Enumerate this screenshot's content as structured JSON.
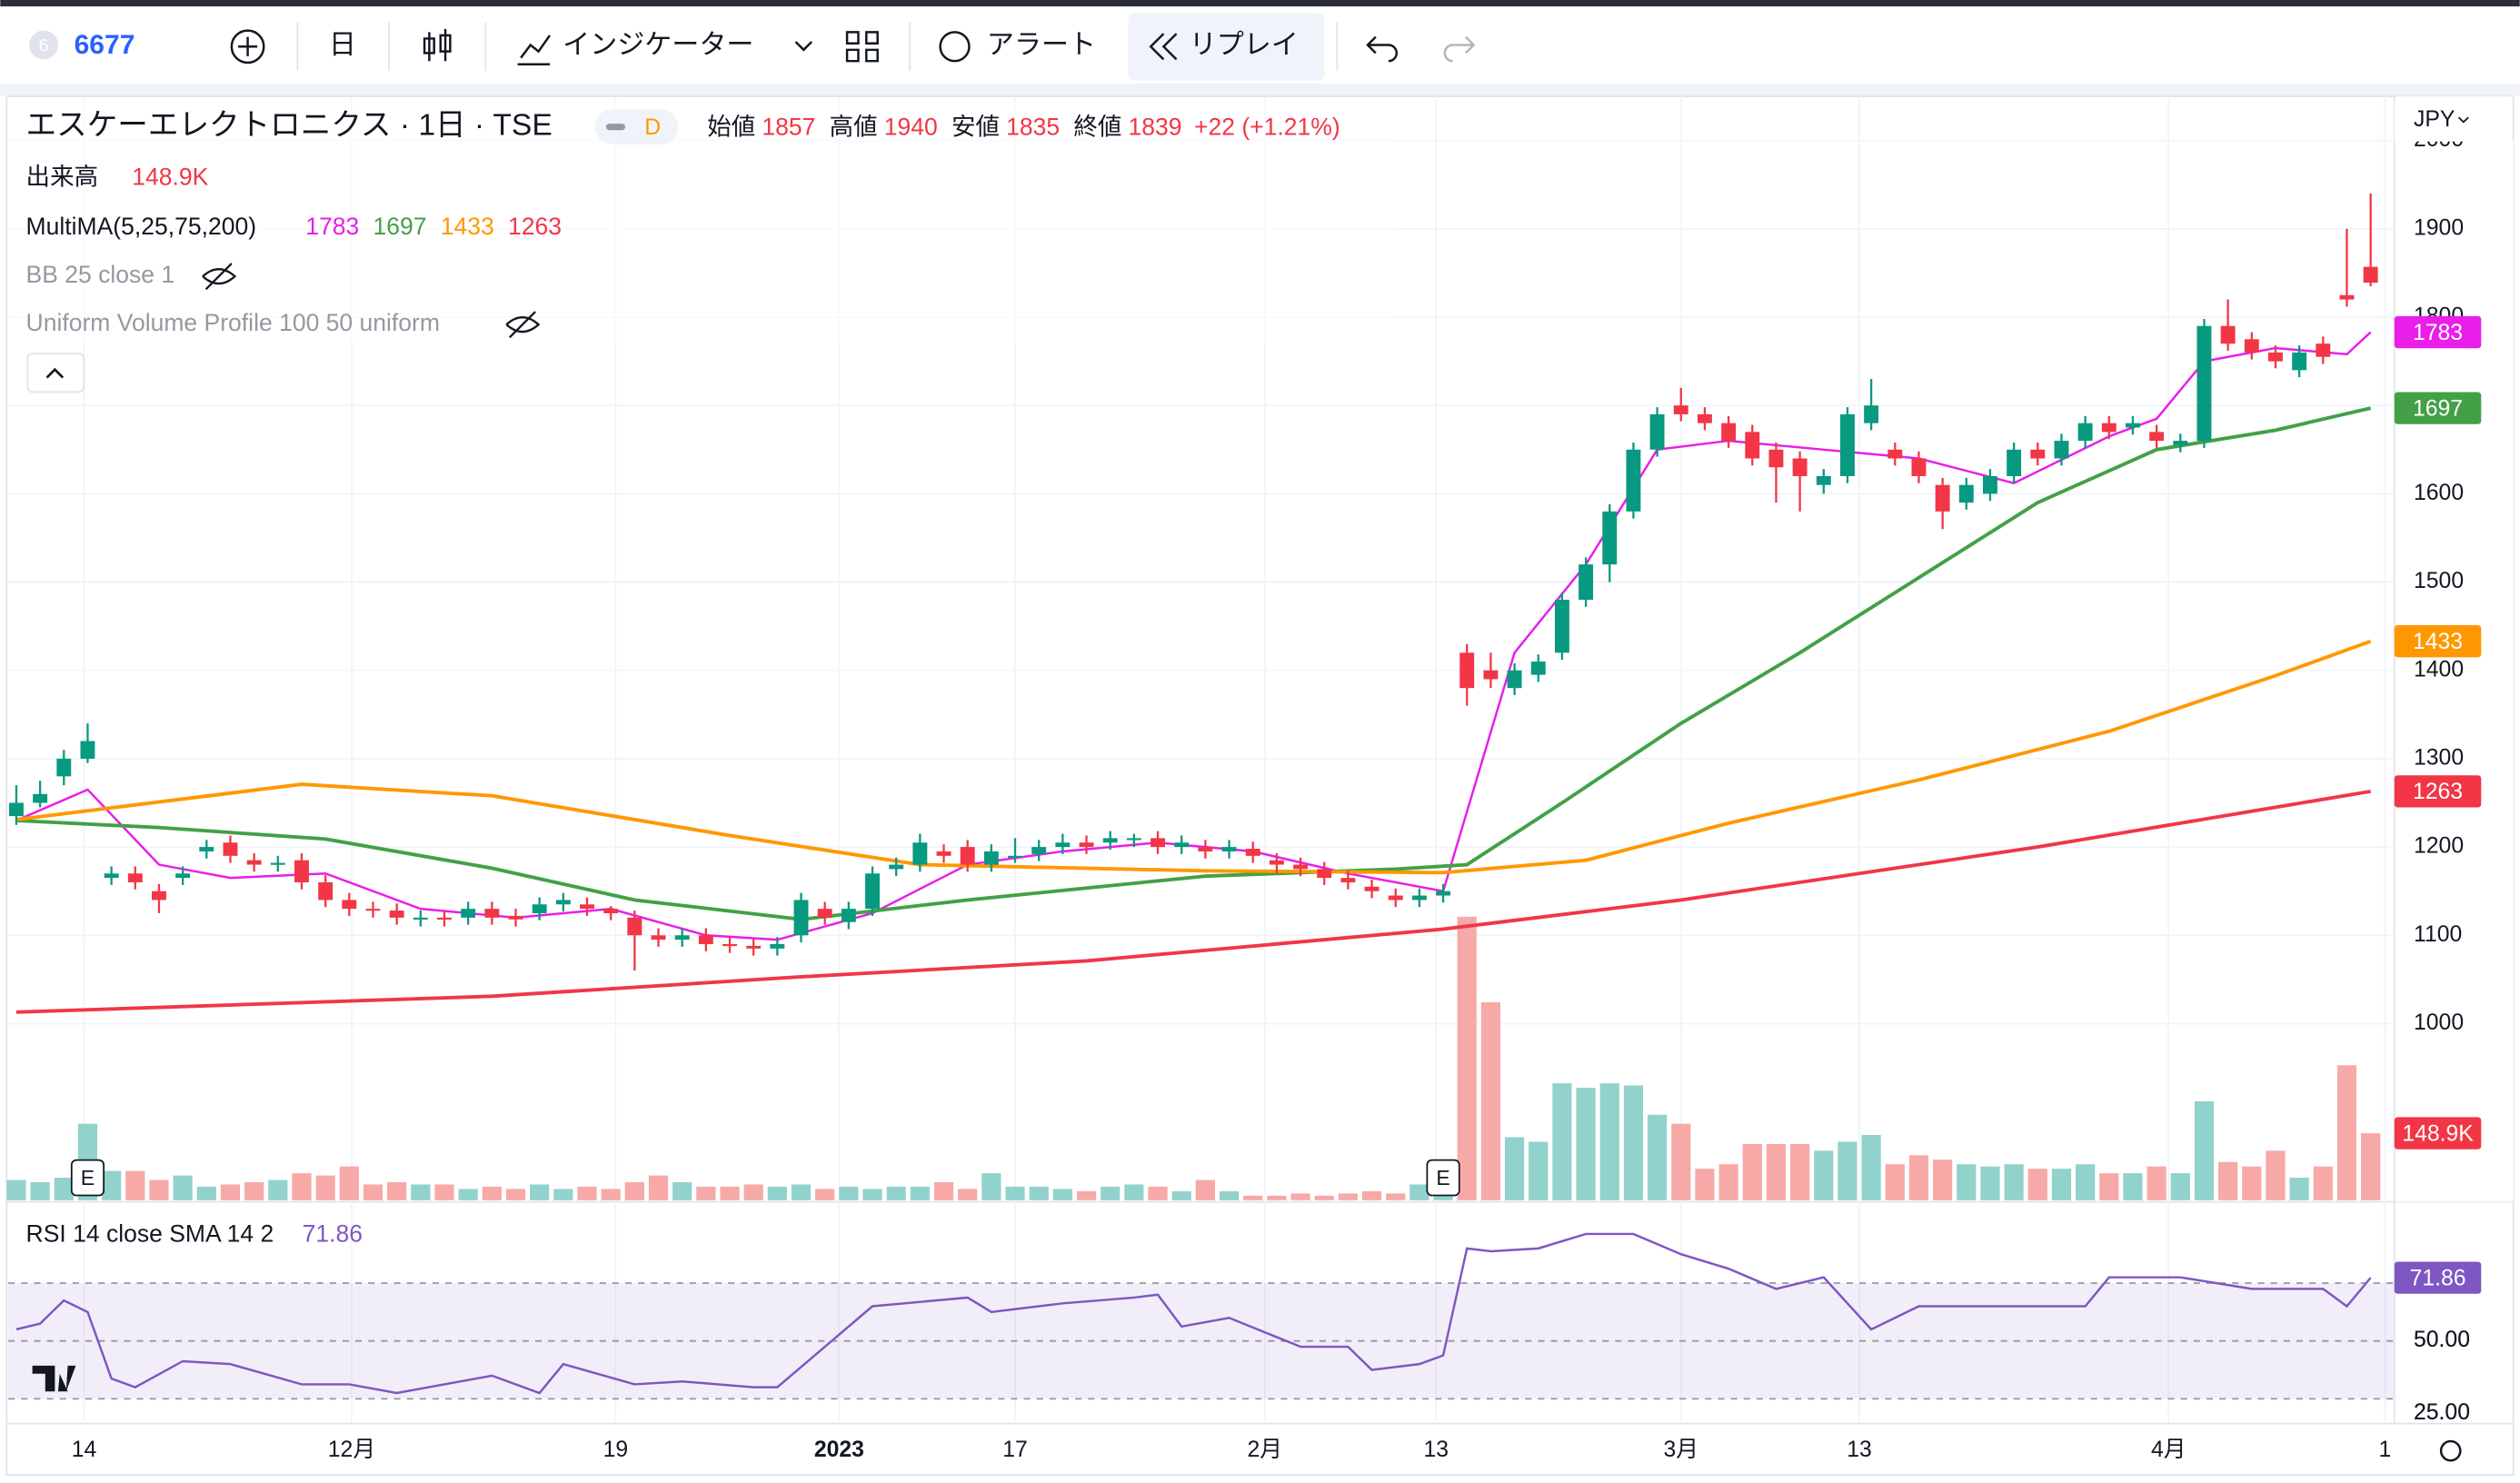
{
  "toolbar": {
    "badge": "6",
    "symbol": "6677",
    "interval": "日",
    "indicators": "インジケーター",
    "alert": "アラート",
    "replay": "リプレイ"
  },
  "chart_data": {
    "type": "candlestick",
    "title": "エスケーエレクトロニクス · 1日 · TSE",
    "badge": "D",
    "currency": "JPY",
    "legend": {
      "open": "始値",
      "high": "高値",
      "low": "安値",
      "close": "終値",
      "change": "+22 (+1.21%)",
      "volume": "出来高",
      "multima": "MultiMA(5,25,75,200)",
      "bb": "BB 25 close 1",
      "vp": "Uniform Volume Profile 100 50 uniform",
      "earnings": "E"
    },
    "up_color": "#089981",
    "down_color": "#f23645",
    "volume_up_color": "#92d2cc",
    "volume_down_color": "#f7a9a7",
    "ylim": [
      800,
      2050
    ],
    "yticks": [
      1000,
      1100,
      1200,
      1300,
      1400,
      1500,
      1600,
      1700,
      1800,
      1900,
      2000
    ],
    "grid": true,
    "xticks": [
      {
        "value": 2.85,
        "label": "14"
      },
      {
        "value": 14.1,
        "label": "12月"
      },
      {
        "value": 25.2,
        "label": "19"
      },
      {
        "value": 34.6,
        "label": "2023"
      },
      {
        "value": 42,
        "label": "17"
      },
      {
        "value": 52.5,
        "label": "2月"
      },
      {
        "value": 59.7,
        "label": "13"
      },
      {
        "value": 70,
        "label": "3月"
      },
      {
        "value": 77.5,
        "label": "13"
      },
      {
        "value": 90.5,
        "label": "4月"
      },
      {
        "value": 99.6,
        "label": "1"
      }
    ],
    "candles": [
      [
        1235,
        1270,
        1225,
        1250
      ],
      [
        1250,
        1275,
        1245,
        1260
      ],
      [
        1280,
        1310,
        1270,
        1300
      ],
      [
        1300,
        1340,
        1295,
        1320
      ],
      [
        1165,
        1178,
        1157,
        1170
      ],
      [
        1170,
        1178,
        1152,
        1160
      ],
      [
        1150,
        1158,
        1125,
        1140
      ],
      [
        1165,
        1178,
        1157,
        1170
      ],
      [
        1195,
        1208,
        1187,
        1200
      ],
      [
        1205,
        1213,
        1182,
        1190
      ],
      [
        1185,
        1193,
        1172,
        1180
      ],
      [
        1180,
        1190,
        1172,
        1182
      ],
      [
        1185,
        1193,
        1152,
        1160
      ],
      [
        1160,
        1168,
        1132,
        1140
      ],
      [
        1140,
        1148,
        1122,
        1130
      ],
      [
        1130,
        1138,
        1120,
        1128
      ],
      [
        1128,
        1136,
        1112,
        1120
      ],
      [
        1118,
        1128,
        1110,
        1120
      ],
      [
        1120,
        1128,
        1110,
        1118
      ],
      [
        1120,
        1138,
        1112,
        1130
      ],
      [
        1130,
        1138,
        1112,
        1120
      ],
      [
        1122,
        1130,
        1110,
        1118
      ],
      [
        1125,
        1143,
        1117,
        1135
      ],
      [
        1135,
        1148,
        1127,
        1140
      ],
      [
        1135,
        1143,
        1122,
        1130
      ],
      [
        1130,
        1133,
        1117,
        1125
      ],
      [
        1120,
        1128,
        1060,
        1100
      ],
      [
        1100,
        1108,
        1087,
        1095
      ],
      [
        1095,
        1108,
        1087,
        1100
      ],
      [
        1100,
        1108,
        1082,
        1090
      ],
      [
        1090,
        1098,
        1080,
        1088
      ],
      [
        1088,
        1096,
        1077,
        1085
      ],
      [
        1085,
        1098,
        1077,
        1090
      ],
      [
        1100,
        1148,
        1092,
        1140
      ],
      [
        1130,
        1138,
        1112,
        1120
      ],
      [
        1115,
        1138,
        1107,
        1130
      ],
      [
        1130,
        1178,
        1122,
        1170
      ],
      [
        1175,
        1188,
        1167,
        1180
      ],
      [
        1180,
        1215,
        1172,
        1205
      ],
      [
        1195,
        1203,
        1182,
        1190
      ],
      [
        1200,
        1208,
        1172,
        1180
      ],
      [
        1180,
        1203,
        1172,
        1195
      ],
      [
        1190,
        1210,
        1182,
        1190
      ],
      [
        1192,
        1208,
        1184,
        1200
      ],
      [
        1200,
        1215,
        1192,
        1205
      ],
      [
        1205,
        1213,
        1192,
        1200
      ],
      [
        1205,
        1218,
        1197,
        1210
      ],
      [
        1208,
        1215,
        1200,
        1210
      ],
      [
        1210,
        1218,
        1192,
        1200
      ],
      [
        1200,
        1213,
        1192,
        1205
      ],
      [
        1200,
        1208,
        1187,
        1195
      ],
      [
        1195,
        1208,
        1187,
        1200
      ],
      [
        1198,
        1206,
        1182,
        1190
      ],
      [
        1185,
        1193,
        1170,
        1180
      ],
      [
        1180,
        1188,
        1167,
        1175
      ],
      [
        1175,
        1183,
        1157,
        1165
      ],
      [
        1165,
        1173,
        1152,
        1160
      ],
      [
        1155,
        1163,
        1142,
        1150
      ],
      [
        1145,
        1153,
        1132,
        1140
      ],
      [
        1140,
        1153,
        1132,
        1145
      ],
      [
        1145,
        1158,
        1137,
        1150
      ],
      [
        1420,
        1430,
        1360,
        1380
      ],
      [
        1400,
        1420,
        1380,
        1390
      ],
      [
        1380,
        1408,
        1372,
        1400
      ],
      [
        1395,
        1418,
        1387,
        1410
      ],
      [
        1420,
        1488,
        1412,
        1480
      ],
      [
        1480,
        1528,
        1472,
        1520
      ],
      [
        1520,
        1588,
        1500,
        1580
      ],
      [
        1580,
        1658,
        1572,
        1650
      ],
      [
        1650,
        1698,
        1642,
        1690
      ],
      [
        1700,
        1720,
        1682,
        1690
      ],
      [
        1690,
        1698,
        1672,
        1680
      ],
      [
        1680,
        1688,
        1652,
        1660
      ],
      [
        1670,
        1678,
        1632,
        1640
      ],
      [
        1650,
        1658,
        1590,
        1630
      ],
      [
        1640,
        1648,
        1580,
        1620
      ],
      [
        1610,
        1628,
        1600,
        1620
      ],
      [
        1620,
        1698,
        1612,
        1690
      ],
      [
        1680,
        1730,
        1672,
        1700
      ],
      [
        1650,
        1658,
        1632,
        1640
      ],
      [
        1640,
        1648,
        1612,
        1620
      ],
      [
        1610,
        1618,
        1560,
        1580
      ],
      [
        1590,
        1618,
        1582,
        1610
      ],
      [
        1600,
        1628,
        1592,
        1620
      ],
      [
        1620,
        1658,
        1612,
        1650
      ],
      [
        1650,
        1658,
        1632,
        1640
      ],
      [
        1640,
        1668,
        1632,
        1660
      ],
      [
        1660,
        1688,
        1652,
        1680
      ],
      [
        1680,
        1688,
        1662,
        1670
      ],
      [
        1675,
        1688,
        1667,
        1680
      ],
      [
        1670,
        1678,
        1652,
        1660
      ],
      [
        1655,
        1668,
        1647,
        1660
      ],
      [
        1660,
        1798,
        1652,
        1790
      ],
      [
        1790,
        1820,
        1762,
        1770
      ],
      [
        1775,
        1783,
        1752,
        1760
      ],
      [
        1760,
        1768,
        1742,
        1750
      ],
      [
        1740,
        1768,
        1732,
        1760
      ],
      [
        1770,
        1778,
        1747,
        1755
      ],
      [
        1825,
        1900,
        1812,
        1820
      ],
      [
        1857,
        1940,
        1835,
        1839
      ]
    ],
    "volume": {
      "values": [
        45,
        40,
        50,
        170,
        65,
        65,
        45,
        55,
        30,
        35,
        40,
        45,
        60,
        55,
        75,
        35,
        40,
        35,
        35,
        25,
        30,
        25,
        35,
        25,
        30,
        25,
        40,
        55,
        40,
        30,
        30,
        35,
        30,
        35,
        25,
        30,
        25,
        30,
        30,
        40,
        25,
        60,
        30,
        30,
        25,
        20,
        30,
        35,
        30,
        20,
        45,
        20,
        10,
        10,
        15,
        10,
        15,
        20,
        15,
        35,
        35,
        630,
        440,
        140,
        130,
        260,
        250,
        260,
        255,
        190,
        170,
        70,
        80,
        125,
        125,
        125,
        110,
        130,
        145,
        80,
        100,
        90,
        80,
        75,
        80,
        70,
        70,
        80,
        60,
        60,
        75,
        60,
        220,
        85,
        75,
        110,
        50,
        75,
        300,
        148.9
      ],
      "value_label": "148.9K"
    },
    "series": [
      {
        "color": "#e91ee9",
        "x": [
          0,
          3,
          6,
          9,
          13,
          17,
          21,
          25,
          29,
          32,
          36,
          40,
          44,
          48,
          52,
          56,
          60,
          63,
          66,
          69,
          72,
          76,
          80,
          84,
          88,
          90,
          92,
          95,
          98,
          99
        ],
        "values": [
          1230,
          1265,
          1180,
          1165,
          1170,
          1130,
          1120,
          1130,
          1100,
          1095,
          1125,
          1180,
          1195,
          1205,
          1195,
          1170,
          1150,
          1420,
          1520,
          1650,
          1660,
          1650,
          1640,
          1612,
          1665,
          1685,
          1750,
          1765,
          1758,
          1783
        ]
      },
      {
        "color": "#43a047",
        "x": [
          0,
          6,
          13,
          20,
          26,
          33,
          40,
          50,
          58,
          61,
          65,
          70,
          75,
          80,
          85,
          90,
          95,
          99
        ],
        "values": [
          1230,
          1222,
          1209,
          1176,
          1140,
          1118,
          1140,
          1167,
          1175,
          1180,
          1250,
          1340,
          1420,
          1505,
          1590,
          1650,
          1672,
          1697
        ]
      },
      {
        "color": "#ff9800",
        "x": [
          0,
          12,
          20,
          30,
          38,
          50,
          60,
          66,
          72,
          80,
          88,
          95,
          99
        ],
        "values": [
          1231,
          1271,
          1258,
          1213,
          1180,
          1173,
          1171,
          1185,
          1227,
          1276,
          1331,
          1394,
          1433
        ]
      },
      {
        "color": "#f23645",
        "x": [
          0,
          20,
          33,
          45,
          60,
          70,
          85,
          99
        ],
        "values": [
          1013,
          1031,
          1053,
          1071,
          1107,
          1140,
          1200,
          1263
        ]
      }
    ],
    "rsi": {
      "title": "RSI 14 close SMA 14 2",
      "color": "#7e57c2",
      "ylim": [
        22,
        97
      ],
      "yticks": [
        {
          "value": 50,
          "label": "50.00"
        },
        {
          "value": 25,
          "label": "25.00"
        }
      ],
      "levels": [
        70,
        50,
        30
      ],
      "x": [
        0,
        1,
        2,
        3,
        4,
        5,
        7,
        9,
        12,
        14,
        16,
        20,
        22,
        23,
        26,
        28,
        31,
        32,
        34,
        36,
        40,
        41,
        44,
        47,
        48,
        49,
        51,
        54,
        56,
        57,
        59,
        60,
        61,
        62,
        64,
        66,
        68,
        70,
        72,
        74,
        76,
        78,
        80,
        83,
        87,
        88,
        91,
        94,
        97,
        98,
        99
      ],
      "values": [
        54,
        56,
        64,
        60,
        37,
        34,
        43,
        42,
        35,
        35,
        32,
        38,
        32,
        42,
        35,
        36,
        34,
        34,
        48,
        62,
        65,
        60,
        63,
        65,
        66,
        55,
        58,
        48,
        48,
        40,
        42,
        45,
        82,
        81,
        82,
        87,
        87,
        80,
        75,
        68,
        72,
        54,
        62,
        62,
        62,
        72,
        72,
        68,
        68,
        62,
        71.86
      ],
      "value_labels": {
        "last": "71.86"
      }
    }
  }
}
